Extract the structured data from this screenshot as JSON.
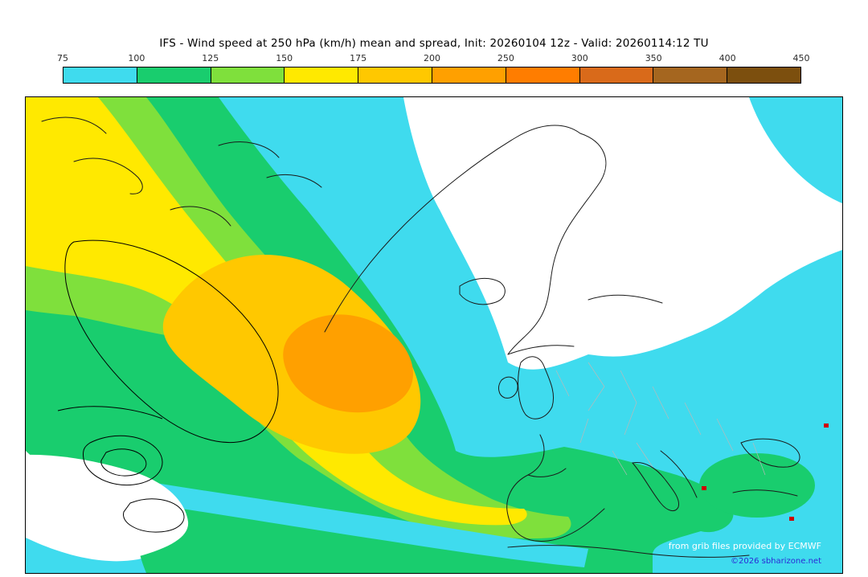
{
  "title": "IFS - Wind speed at 250 hPa (km/h) mean and spread, Init: 20260104 12z - Valid: 20260114:12 TU",
  "colorbar": {
    "tick_labels": [
      "75",
      "100",
      "125",
      "150",
      "175",
      "200",
      "250",
      "300",
      "350",
      "400",
      "450"
    ],
    "segment_colors": [
      "#3FDBEE",
      "#19CD6E",
      "#7FE03C",
      "#FFE900",
      "#FFC800",
      "#FFA000",
      "#FF7D00",
      "#D96A1A",
      "#A5661F",
      "#7C4F0E"
    ],
    "border_color": "#000000"
  },
  "map": {
    "background_color": "#ffffff",
    "credit_line1": "from grib files provided by ECMWF",
    "credit_line2": "©2026 sbharizone.net",
    "marker_color": "#cc0000"
  },
  "chart_data": {
    "type": "heatmap",
    "title": "IFS - Wind speed at 250 hPa (km/h) mean and spread",
    "init": "20260104 12z",
    "valid": "20260114:12 TU",
    "units": "km/h",
    "levels": [
      75,
      100,
      125,
      150,
      175,
      200,
      250,
      300,
      350,
      400,
      450
    ],
    "level_colors": [
      "#3FDBEE",
      "#19CD6E",
      "#7FE03C",
      "#FFE900",
      "#FFC800",
      "#FFA000",
      "#FF7D00",
      "#D96A1A",
      "#A5661F",
      "#7C4F0E"
    ],
    "features": [
      {
        "name": "jet-streak-core",
        "approx_value": 225,
        "location": "central North Atlantic"
      },
      {
        "name": "jet-band",
        "approx_value": 150,
        "location": "from NW Atlantic southeastward toward Europe"
      },
      {
        "name": "weak-wind-region",
        "approx_value": 50,
        "location": "Scandinavia / Norwegian Sea"
      }
    ]
  }
}
